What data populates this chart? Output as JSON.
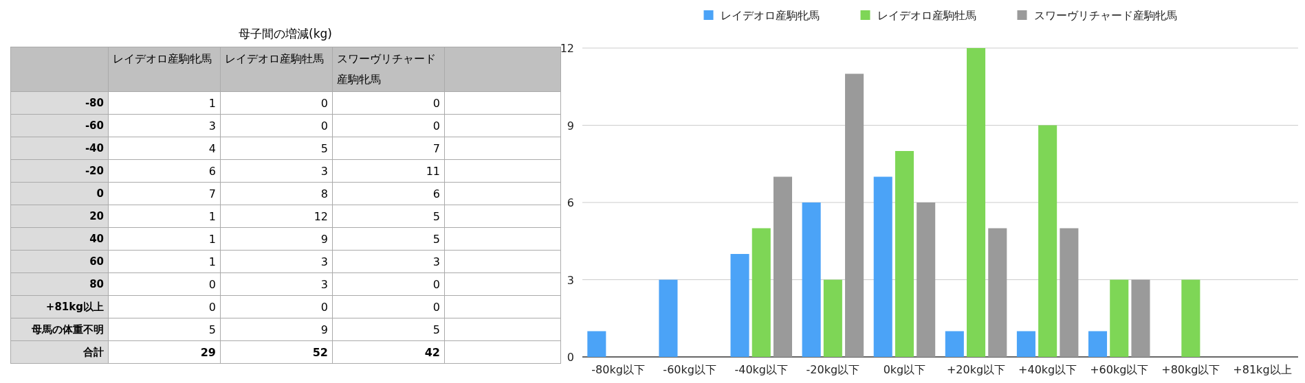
{
  "chart_data": [
    {
      "type": "heatmap",
      "title": "母子間の増減(kg)",
      "categories": [
        "レイデオロ産駒牝馬",
        "レイデオロ産駒牡馬",
        "スワーヴリチャード産駒牝馬",
        null
      ],
      "y_categories": [
        "-80",
        "-60",
        "-40",
        "-20",
        "0",
        "20",
        "40",
        "60",
        "80",
        "+81kg以上",
        "母馬の体重不明",
        "合計"
      ],
      "cells": [
        [
          1,
          0,
          0,
          null
        ],
        [
          3,
          0,
          0,
          null
        ],
        [
          4,
          5,
          7,
          null
        ],
        [
          6,
          3,
          11,
          null
        ],
        [
          7,
          8,
          6,
          null
        ],
        [
          1,
          12,
          5,
          null
        ],
        [
          1,
          9,
          5,
          null
        ],
        [
          1,
          3,
          3,
          null
        ],
        [
          0,
          3,
          0,
          null
        ],
        [
          0,
          0,
          0,
          null
        ],
        [
          5,
          9,
          5,
          null
        ],
        [
          29,
          52,
          42,
          null
        ]
      ],
      "data_labels": true
    },
    {
      "type": "bar",
      "categories": [
        "-80kg以下",
        "-60kg以下",
        "-40kg以下",
        "-20kg以下",
        "0kg以下",
        "+20kg以下",
        "+40kg以下",
        "+60kg以下",
        "+80kg以下",
        "+81kg以上"
      ],
      "series": [
        {
          "name": "レイデオロ産駒牝馬",
          "color": "#4ba3f7",
          "values": [
            1,
            3,
            4,
            6,
            7,
            1,
            1,
            1,
            0,
            0
          ]
        },
        {
          "name": "レイデオロ産駒牡馬",
          "color": "#7ed656",
          "values": [
            0,
            0,
            5,
            3,
            8,
            12,
            9,
            3,
            3,
            0
          ]
        },
        {
          "name": "スワーヴリチャード産駒牝馬",
          "color": "#9a9a9a",
          "values": [
            0,
            0,
            7,
            11,
            6,
            5,
            5,
            3,
            0,
            0
          ]
        }
      ],
      "ylim": [
        0,
        12
      ],
      "yticks": [
        0,
        3,
        6,
        9,
        12
      ],
      "grid": "y",
      "legend": "top"
    }
  ]
}
